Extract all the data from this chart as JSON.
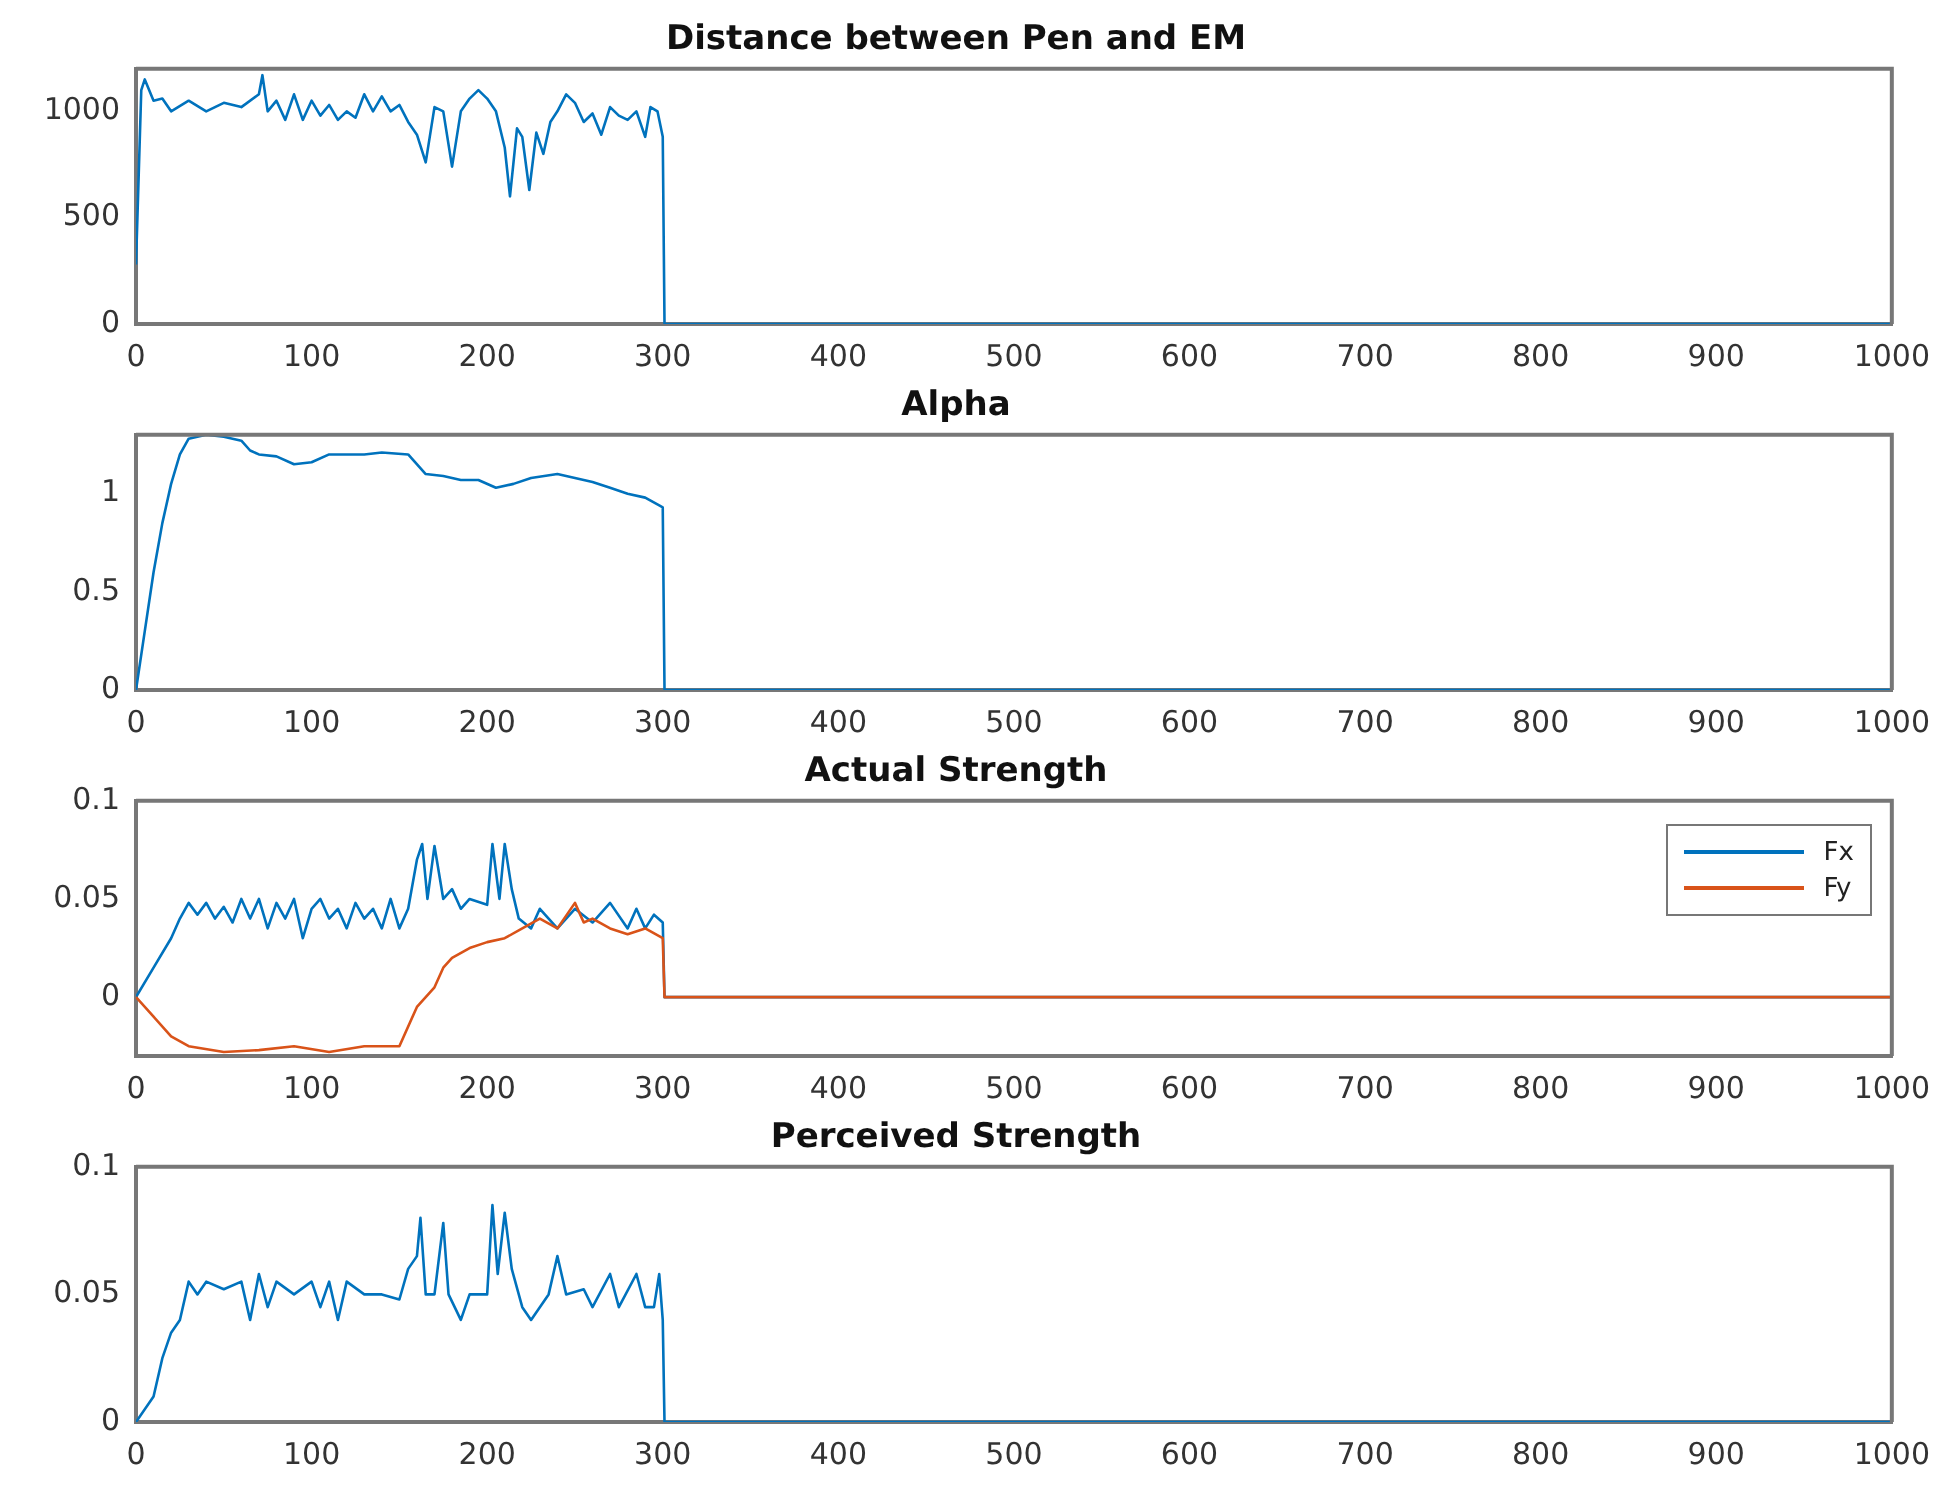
{
  "chart_data": [
    {
      "type": "line",
      "title": "Distance between Pen and EM",
      "xlim": [
        0,
        1000
      ],
      "xticks": [
        0,
        100,
        200,
        300,
        400,
        500,
        600,
        700,
        800,
        900,
        1000
      ],
      "ylim": [
        0,
        1200
      ],
      "yticks": [
        0,
        500,
        1000
      ],
      "grid": false,
      "legend": false,
      "marker": "none",
      "line_style": "solid",
      "series": [
        {
          "color": "#0072bd",
          "x": [
            0,
            3,
            5,
            10,
            15,
            20,
            30,
            40,
            50,
            60,
            70,
            72,
            75,
            80,
            85,
            90,
            95,
            100,
            105,
            110,
            115,
            120,
            125,
            130,
            135,
            140,
            145,
            150,
            155,
            160,
            165,
            170,
            175,
            180,
            185,
            190,
            195,
            200,
            205,
            210,
            213,
            217,
            220,
            224,
            228,
            232,
            236,
            240,
            245,
            250,
            255,
            260,
            265,
            270,
            275,
            280,
            285,
            290,
            293,
            297,
            300,
            301,
            1000
          ],
          "values": [
            280,
            1100,
            1150,
            1050,
            1060,
            1000,
            1050,
            1000,
            1040,
            1020,
            1080,
            1170,
            1000,
            1050,
            960,
            1080,
            960,
            1050,
            980,
            1030,
            960,
            1000,
            970,
            1080,
            1000,
            1070,
            1000,
            1030,
            950,
            890,
            760,
            1020,
            1000,
            740,
            1000,
            1060,
            1100,
            1060,
            1000,
            830,
            600,
            920,
            880,
            630,
            900,
            800,
            950,
            1000,
            1080,
            1040,
            950,
            990,
            890,
            1020,
            980,
            960,
            1000,
            880,
            1020,
            1000,
            880,
            0,
            0
          ]
        }
      ]
    },
    {
      "type": "line",
      "title": "Alpha",
      "xlim": [
        0,
        1000
      ],
      "xticks": [
        0,
        100,
        200,
        300,
        400,
        500,
        600,
        700,
        800,
        900,
        1000
      ],
      "ylim": [
        0,
        1.3
      ],
      "yticks": [
        0,
        0.5,
        1
      ],
      "grid": false,
      "legend": false,
      "marker": "none",
      "line_style": "solid",
      "series": [
        {
          "color": "#0072bd",
          "x": [
            0,
            5,
            10,
            15,
            20,
            25,
            30,
            40,
            50,
            60,
            65,
            70,
            80,
            90,
            100,
            110,
            130,
            140,
            155,
            165,
            175,
            185,
            195,
            205,
            215,
            225,
            240,
            250,
            260,
            270,
            280,
            290,
            298,
            300,
            301,
            1000
          ],
          "values": [
            0,
            0.3,
            0.6,
            0.85,
            1.05,
            1.2,
            1.28,
            1.3,
            1.29,
            1.27,
            1.22,
            1.2,
            1.19,
            1.15,
            1.16,
            1.2,
            1.2,
            1.21,
            1.2,
            1.1,
            1.09,
            1.07,
            1.07,
            1.03,
            1.05,
            1.08,
            1.1,
            1.08,
            1.06,
            1.03,
            1.0,
            0.98,
            0.94,
            0.93,
            0,
            0
          ]
        }
      ]
    },
    {
      "type": "line",
      "title": "Actual Strength",
      "xlim": [
        0,
        1000
      ],
      "xticks": [
        0,
        100,
        200,
        300,
        400,
        500,
        600,
        700,
        800,
        900,
        1000
      ],
      "ylim": [
        -0.03,
        0.1
      ],
      "yticks": [
        0,
        0.05,
        0.1
      ],
      "grid": false,
      "legend": "top right",
      "marker": "none",
      "line_style": "solid",
      "series": [
        {
          "name": "Fx",
          "color": "#0072bd",
          "x": [
            0,
            10,
            20,
            25,
            30,
            35,
            40,
            45,
            50,
            55,
            60,
            65,
            70,
            75,
            80,
            85,
            90,
            95,
            100,
            105,
            110,
            115,
            120,
            125,
            130,
            135,
            140,
            145,
            150,
            155,
            160,
            163,
            166,
            170,
            175,
            180,
            185,
            190,
            200,
            203,
            207,
            210,
            214,
            218,
            225,
            230,
            240,
            250,
            260,
            270,
            280,
            285,
            290,
            295,
            300,
            301,
            1000
          ],
          "values": [
            0,
            0.015,
            0.03,
            0.04,
            0.048,
            0.042,
            0.048,
            0.04,
            0.046,
            0.038,
            0.05,
            0.04,
            0.05,
            0.035,
            0.048,
            0.04,
            0.05,
            0.03,
            0.045,
            0.05,
            0.04,
            0.045,
            0.035,
            0.048,
            0.04,
            0.045,
            0.035,
            0.05,
            0.035,
            0.045,
            0.07,
            0.078,
            0.05,
            0.077,
            0.05,
            0.055,
            0.045,
            0.05,
            0.047,
            0.078,
            0.05,
            0.078,
            0.055,
            0.04,
            0.035,
            0.045,
            0.035,
            0.045,
            0.038,
            0.048,
            0.035,
            0.045,
            0.035,
            0.042,
            0.038,
            0,
            0
          ]
        },
        {
          "name": "Fy",
          "color": "#d95319",
          "x": [
            0,
            10,
            20,
            30,
            40,
            50,
            60,
            70,
            80,
            90,
            100,
            110,
            120,
            130,
            140,
            150,
            160,
            170,
            175,
            180,
            190,
            200,
            210,
            220,
            230,
            240,
            250,
            255,
            260,
            270,
            280,
            290,
            300,
            301,
            1000
          ],
          "values": [
            0,
            -0.01,
            -0.02,
            -0.025,
            null,
            -0.028,
            null,
            -0.027,
            null,
            -0.025,
            null,
            -0.028,
            null,
            -0.025,
            null,
            -0.025,
            -0.005,
            0.005,
            0.015,
            0.02,
            0.025,
            0.028,
            0.03,
            0.035,
            0.04,
            0.035,
            0.048,
            0.038,
            0.04,
            0.035,
            0.032,
            0.035,
            0.03,
            0,
            0
          ]
        }
      ]
    },
    {
      "type": "line",
      "title": "Perceived Strength",
      "xlim": [
        0,
        1000
      ],
      "xticks": [
        0,
        100,
        200,
        300,
        400,
        500,
        600,
        700,
        800,
        900,
        1000
      ],
      "ylim": [
        0,
        0.1
      ],
      "yticks": [
        0,
        0.05,
        0.1
      ],
      "grid": false,
      "legend": false,
      "marker": "none",
      "line_style": "solid",
      "series": [
        {
          "color": "#0072bd",
          "x": [
            0,
            10,
            15,
            20,
            25,
            30,
            35,
            40,
            50,
            60,
            65,
            70,
            75,
            80,
            90,
            100,
            105,
            110,
            115,
            120,
            130,
            140,
            150,
            155,
            160,
            162,
            165,
            170,
            175,
            178,
            185,
            190,
            200,
            203,
            206,
            210,
            214,
            220,
            225,
            235,
            240,
            245,
            255,
            260,
            270,
            275,
            285,
            290,
            295,
            298,
            300,
            301,
            1000
          ],
          "values": [
            0,
            0.01,
            0.025,
            0.035,
            0.04,
            0.055,
            0.05,
            0.055,
            0.052,
            0.055,
            0.04,
            0.058,
            0.045,
            0.055,
            0.05,
            0.055,
            0.045,
            0.055,
            0.04,
            0.055,
            0.05,
            0.05,
            0.048,
            0.06,
            0.065,
            0.08,
            0.05,
            0.05,
            0.078,
            0.05,
            0.04,
            0.05,
            0.05,
            0.085,
            0.058,
            0.082,
            0.06,
            0.045,
            0.04,
            0.05,
            0.065,
            0.05,
            0.052,
            0.045,
            0.058,
            0.045,
            0.058,
            0.045,
            0.045,
            0.058,
            0.04,
            0,
            0
          ]
        }
      ]
    }
  ]
}
